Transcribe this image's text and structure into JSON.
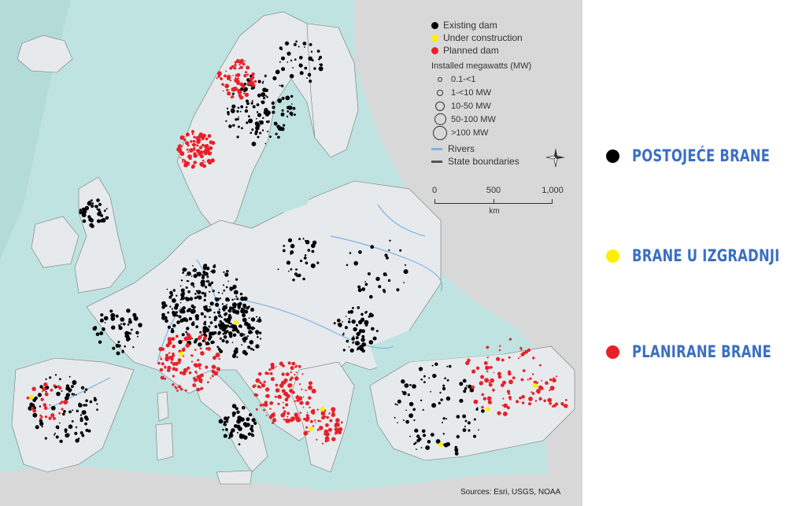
{
  "map": {
    "legend": {
      "dam_types": [
        {
          "label": "Existing dam",
          "color": "#000000"
        },
        {
          "label": "Under construction",
          "color": "#ffee00"
        },
        {
          "label": "Planned dam",
          "color": "#e8202a"
        }
      ],
      "size_title": "Installed megawatts (MW)",
      "sizes": [
        "0.1-<1",
        "1-<10 MW",
        "10-50 MW",
        "50-100 MW",
        ">100 MW"
      ],
      "rivers_label": "Rivers",
      "boundaries_label": "State boundaries",
      "river_color": "#7fb2e8",
      "boundary_color": "#555555"
    },
    "scale": {
      "ticks": [
        "0",
        "500",
        "1,000"
      ],
      "unit": "km"
    },
    "sources": "Sources: Esri, USGS, NOAA",
    "colors": {
      "sea": "#bfe3e1",
      "land": "#e6eaec",
      "outside_land": "#d8d8d8"
    }
  },
  "key": {
    "items": [
      {
        "label": "POSTOJEĆE BRANE",
        "color": "#000000"
      },
      {
        "label": "BRANE U IZGRADNJI",
        "color": "#ffee00"
      },
      {
        "label": "PLANIRANE BRANE",
        "color": "#e8202a"
      }
    ]
  }
}
